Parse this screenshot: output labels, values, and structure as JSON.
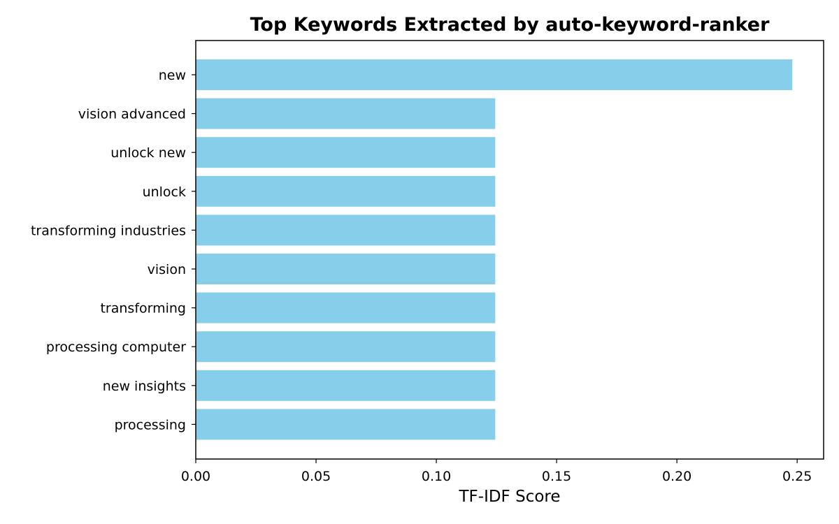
{
  "chart_data": {
    "type": "bar",
    "orientation": "horizontal",
    "title": "Top Keywords Extracted by auto-keyword-ranker",
    "xlabel": "TF-IDF Score",
    "ylabel": "",
    "categories": [
      "new",
      "vision advanced",
      "unlock new",
      "unlock",
      "transforming industries",
      "vision",
      "transforming",
      "processing computer",
      "new insights",
      "processing"
    ],
    "values": [
      0.248,
      0.1245,
      0.1245,
      0.1245,
      0.1245,
      0.1245,
      0.1245,
      0.1245,
      0.1245,
      0.1245
    ],
    "xlim": [
      0.0,
      0.261
    ],
    "xticks": [
      "0.00",
      "0.05",
      "0.10",
      "0.15",
      "0.20",
      "0.25"
    ],
    "bar_color": "#87CEEB",
    "grid": false,
    "legend": "none"
  }
}
